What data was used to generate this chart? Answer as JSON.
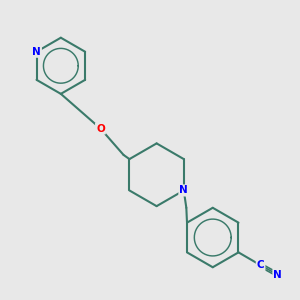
{
  "bg_color": "#e8e8e8",
  "bond_color": "#3a7a6a",
  "bond_width": 1.5,
  "atom_colors": {
    "N": "#0000ff",
    "O": "#ff0000",
    "C": "#3a7a6a",
    "default": "#3a7a6a"
  },
  "figsize": [
    3.0,
    3.0
  ],
  "dpi": 100
}
